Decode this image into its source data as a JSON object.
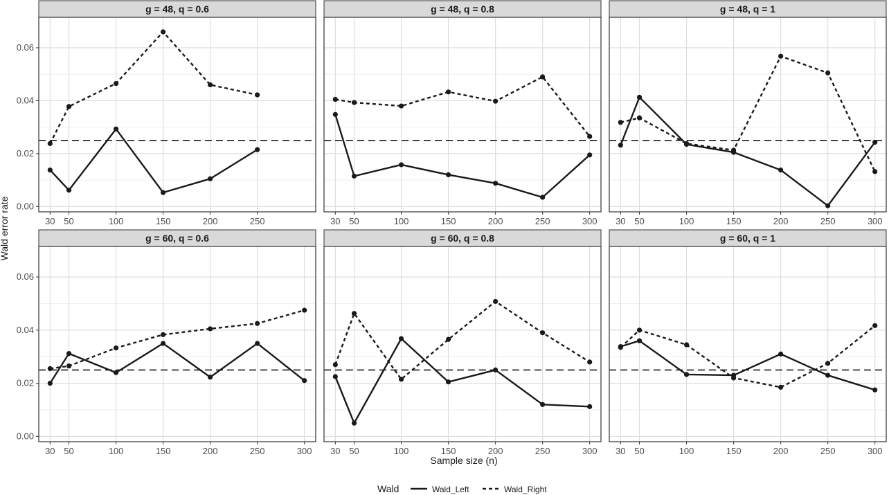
{
  "chart_data": {
    "type": "line",
    "xlabel": "Sample size (n)",
    "ylabel": "Wald error rate",
    "ylim": [
      -0.002,
      0.0715
    ],
    "y_ticks": [
      0.0,
      0.02,
      0.04,
      0.06
    ],
    "y_tick_labels": [
      "0.00",
      "0.02",
      "0.04",
      "0.06"
    ],
    "reference_line": 0.025,
    "grid": true,
    "legend": {
      "title": "Wald",
      "position": "bottom",
      "items": [
        {
          "label": "Wald_Left",
          "style": "solid"
        },
        {
          "label": "Wald_Right",
          "style": "dashed"
        }
      ]
    },
    "colors": {
      "line": "#1a1a1a",
      "strip": "#d9d9d9",
      "grid": "#dedede",
      "frame": "#333333"
    },
    "panels": [
      {
        "strip": "g = 48, q = 0.6",
        "x": [
          30,
          50,
          100,
          150,
          200,
          250
        ],
        "x_ticks": [
          30,
          50,
          100,
          150,
          200,
          250
        ],
        "series": [
          {
            "name": "Wald_Left",
            "values": [
              0.0138,
              0.0062,
              0.0293,
              0.0053,
              0.0105,
              0.0215
            ]
          },
          {
            "name": "Wald_Right",
            "values": [
              0.0238,
              0.0378,
              0.0465,
              0.066,
              0.046,
              0.0422
            ]
          }
        ]
      },
      {
        "strip": "g = 48, q = 0.8",
        "x": [
          30,
          50,
          100,
          150,
          200,
          250,
          300
        ],
        "x_ticks": [
          30,
          50,
          100,
          150,
          200,
          250,
          300
        ],
        "series": [
          {
            "name": "Wald_Left",
            "values": [
              0.0348,
              0.0115,
              0.0158,
              0.012,
              0.0088,
              0.0035,
              0.0195
            ]
          },
          {
            "name": "Wald_Right",
            "values": [
              0.0405,
              0.0393,
              0.038,
              0.0433,
              0.0398,
              0.049,
              0.0265
            ]
          }
        ]
      },
      {
        "strip": "g = 48, q = 1",
        "x": [
          30,
          50,
          100,
          150,
          200,
          250,
          300
        ],
        "x_ticks": [
          30,
          50,
          100,
          150,
          200,
          250,
          300
        ],
        "series": [
          {
            "name": "Wald_Left",
            "values": [
              0.0232,
              0.0413,
              0.0235,
              0.0205,
              0.0138,
              0.0003,
              0.0243
            ]
          },
          {
            "name": "Wald_Right",
            "values": [
              0.0318,
              0.0335,
              0.0238,
              0.0213,
              0.0568,
              0.0505,
              0.0132
            ]
          }
        ]
      },
      {
        "strip": "g = 60, q = 0.6",
        "x": [
          30,
          50,
          100,
          150,
          200,
          250,
          300
        ],
        "x_ticks": [
          30,
          50,
          100,
          150,
          200,
          250,
          300
        ],
        "series": [
          {
            "name": "Wald_Left",
            "values": [
              0.02,
              0.0312,
              0.024,
              0.035,
              0.0223,
              0.035,
              0.021
            ]
          },
          {
            "name": "Wald_Right",
            "values": [
              0.0255,
              0.0265,
              0.0333,
              0.0383,
              0.0405,
              0.0425,
              0.0475
            ]
          }
        ]
      },
      {
        "strip": "g = 60, q = 0.8",
        "x": [
          30,
          50,
          100,
          150,
          200,
          250,
          300
        ],
        "x_ticks": [
          30,
          50,
          100,
          150,
          200,
          250,
          300
        ],
        "series": [
          {
            "name": "Wald_Left",
            "values": [
              0.0225,
              0.005,
              0.0368,
              0.0205,
              0.025,
              0.012,
              0.0112
            ]
          },
          {
            "name": "Wald_Right",
            "values": [
              0.027,
              0.0463,
              0.0215,
              0.0365,
              0.0508,
              0.039,
              0.028
            ]
          }
        ]
      },
      {
        "strip": "g = 60, q = 1",
        "x": [
          30,
          50,
          100,
          150,
          200,
          250,
          300
        ],
        "x_ticks": [
          30,
          50,
          100,
          150,
          200,
          250,
          300
        ],
        "series": [
          {
            "name": "Wald_Left",
            "values": [
              0.0338,
              0.036,
              0.0233,
              0.023,
              0.031,
              0.023,
              0.0175
            ]
          },
          {
            "name": "Wald_Right",
            "values": [
              0.0335,
              0.04,
              0.0345,
              0.022,
              0.0185,
              0.0275,
              0.0417
            ]
          }
        ]
      }
    ]
  }
}
